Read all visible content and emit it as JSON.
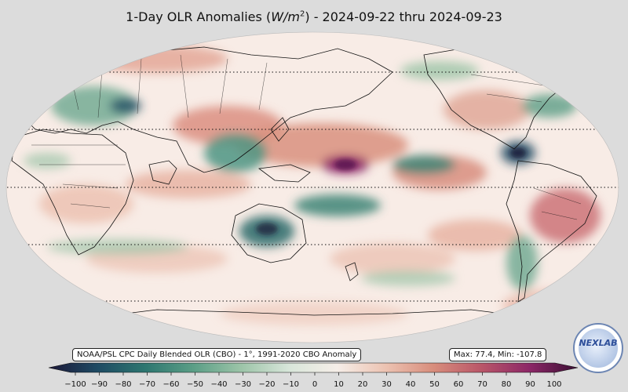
{
  "header": {
    "title_prefix": "1-Day OLR Anomalies (",
    "title_unit_base": "W/m",
    "title_unit_exp": "2",
    "title_suffix": ") - 2024-09-22 thru 2024-09-23"
  },
  "footer": {
    "source_label": "NOAA/PSL CPC Daily Blended OLR (CBO) - 1°, 1991-2020 CBO Anomaly",
    "max_min_label": "Max: 77.4,  Min: -107.8"
  },
  "colorbar": {
    "ticks": [
      "−100",
      "−90",
      "−80",
      "−70",
      "−60",
      "−50",
      "−40",
      "−30",
      "−20",
      "−10",
      "0",
      "10",
      "20",
      "30",
      "40",
      "50",
      "60",
      "70",
      "80",
      "90",
      "100"
    ],
    "range": [
      -100,
      100
    ],
    "colors": [
      "#1c1838",
      "#1e4a63",
      "#2d7670",
      "#5a9e86",
      "#9cc4a8",
      "#d8e6da",
      "#f6eee8",
      "#ecc3b2",
      "#d88d7c",
      "#b95668",
      "#8c2767",
      "#3a0f33"
    ]
  },
  "logo": {
    "text": "NEXLAB"
  },
  "map": {
    "projection": "robinson",
    "central_longitude": 180,
    "coastlines": true,
    "country_borders": true,
    "dotted_latitudes": [
      -60,
      -30,
      0,
      30,
      60
    ]
  },
  "colors": {
    "background": "#dcdcdc",
    "ocean_neutral": "#f8ece6"
  }
}
